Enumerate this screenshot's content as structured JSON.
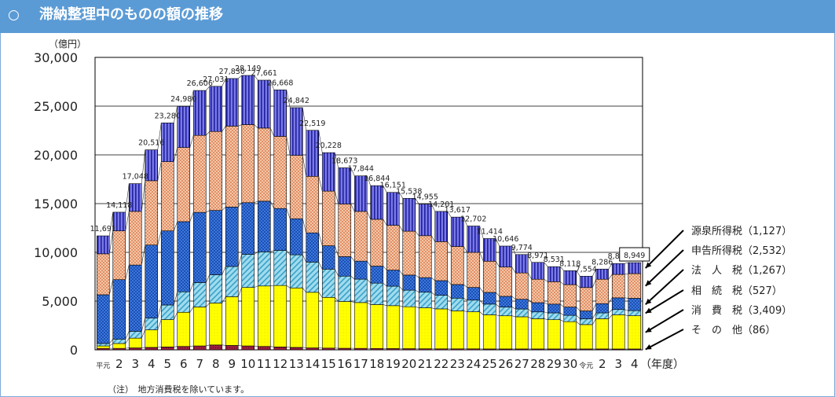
{
  "header": {
    "circle": "○",
    "title": "滞納整理中のものの額の推移"
  },
  "note": "（注）　地方消費税を除いています。",
  "colors": {
    "header_bg": "#5b9bd5",
    "その他": "#8b1a3a",
    "消費税": "#ffff00",
    "相続税": "#8fd3e8",
    "法人税": "#2f6fd8",
    "申告所得税": "#f7c6a3",
    "源泉所得税": "#5050c8"
  },
  "chart_data": {
    "type": "bar",
    "stacked": true,
    "unit_label": "（億円）",
    "xlabel": "（年度）",
    "ylim": [
      0,
      30000
    ],
    "y_ticks": [
      "0",
      "5,000",
      "10,000",
      "15,000",
      "20,000",
      "25,000",
      "30,000"
    ],
    "grid": true,
    "categories": [
      "平元",
      "2",
      "3",
      "4",
      "5",
      "6",
      "7",
      "8",
      "9",
      "10",
      "11",
      "12",
      "13",
      "14",
      "15",
      "16",
      "17",
      "18",
      "19",
      "20",
      "21",
      "22",
      "23",
      "24",
      "25",
      "26",
      "27",
      "28",
      "29",
      "30",
      "令元",
      "2",
      "3",
      "4"
    ],
    "totals": [
      11691,
      14118,
      17048,
      20516,
      23280,
      24980,
      26606,
      27031,
      27830,
      28149,
      27661,
      26668,
      24842,
      22519,
      20228,
      18673,
      17844,
      16844,
      16151,
      15538,
      14955,
      14201,
      13617,
      12702,
      11414,
      10646,
      9774,
      8971,
      8531,
      8118,
      7554,
      8286,
      8857,
      8949
    ],
    "total_labels": [
      "11,691",
      "14,118",
      "17,048",
      "20,516",
      "23,280",
      "24,980",
      "26,606",
      "27,031",
      "27,830",
      "28,149",
      "27,661",
      "26,668",
      "24,842",
      "22,519",
      "20,228",
      "18,673",
      "17,844",
      "16,844",
      "16,151",
      "15,538",
      "14,955",
      "14,201",
      "13,617",
      "12,702",
      "11,414",
      "10,646",
      "9,774",
      "8,971",
      "8,531",
      "8,118",
      "7,554",
      "8,286",
      "8,857",
      "8,949"
    ],
    "highlight_total_index": 33,
    "series": [
      {
        "name": "その他",
        "values": [
          150,
          150,
          200,
          250,
          300,
          350,
          400,
          500,
          450,
          400,
          350,
          300,
          250,
          200,
          180,
          160,
          150,
          140,
          130,
          120,
          110,
          100,
          100,
          100,
          90,
          90,
          90,
          90,
          90,
          90,
          90,
          90,
          85,
          86
        ]
      },
      {
        "name": "消費税",
        "values": [
          250,
          500,
          1000,
          1800,
          2800,
          3500,
          4000,
          4300,
          5000,
          6000,
          6200,
          6300,
          6100,
          5700,
          5200,
          4800,
          4700,
          4500,
          4400,
          4300,
          4200,
          4100,
          3900,
          3800,
          3500,
          3400,
          3300,
          3100,
          3000,
          2800,
          2500,
          3100,
          3500,
          3409
        ]
      },
      {
        "name": "相続税",
        "values": [
          250,
          450,
          700,
          1200,
          1500,
          2100,
          2500,
          2900,
          3100,
          3400,
          3500,
          3600,
          3400,
          3100,
          2900,
          2600,
          2400,
          2200,
          2000,
          1700,
          1600,
          1400,
          1300,
          1200,
          1100,
          900,
          800,
          700,
          700,
          650,
          600,
          600,
          550,
          527
        ]
      },
      {
        "name": "法人税",
        "values": [
          5000,
          6100,
          6800,
          7500,
          7600,
          7200,
          7200,
          6600,
          6100,
          5300,
          5200,
          4300,
          3700,
          3000,
          2400,
          2000,
          1850,
          1750,
          1650,
          1550,
          1500,
          1500,
          1400,
          1300,
          1200,
          1100,
          1000,
          950,
          900,
          850,
          800,
          950,
          1200,
          1267
        ]
      },
      {
        "name": "申告所得税",
        "values": [
          4200,
          5000,
          5500,
          6600,
          7100,
          7600,
          7900,
          8100,
          8300,
          8000,
          7500,
          7400,
          6500,
          5800,
          5600,
          5400,
          5100,
          4800,
          4600,
          4500,
          4300,
          4000,
          3900,
          3600,
          3200,
          3000,
          2700,
          2400,
          2300,
          2300,
          2400,
          2500,
          2400,
          2532
        ]
      },
      {
        "name": "源泉所得税",
        "values": [
          1841,
          1918,
          2848,
          3166,
          3980,
          4230,
          4606,
          4631,
          4880,
          5049,
          4911,
          4768,
          4892,
          4719,
          3948,
          3713,
          3644,
          3454,
          3371,
          3368,
          3245,
          3101,
          3017,
          2702,
          2324,
          2156,
          1884,
          1731,
          1541,
          1428,
          1164,
          1046,
          1122,
          1127
        ]
      }
    ],
    "legend": [
      {
        "label": "源泉所得税（1,127）",
        "series": "源泉所得税"
      },
      {
        "label": "申告所得税（2,532）",
        "series": "申告所得税"
      },
      {
        "label": "法　人　税（1,267）",
        "series": "法人税"
      },
      {
        "label": "相　続　税（527）",
        "series": "相続税"
      },
      {
        "label": "消　費　税（3,409）",
        "series": "消費税"
      },
      {
        "label": "そ　の　他（86）",
        "series": "その他"
      }
    ]
  }
}
